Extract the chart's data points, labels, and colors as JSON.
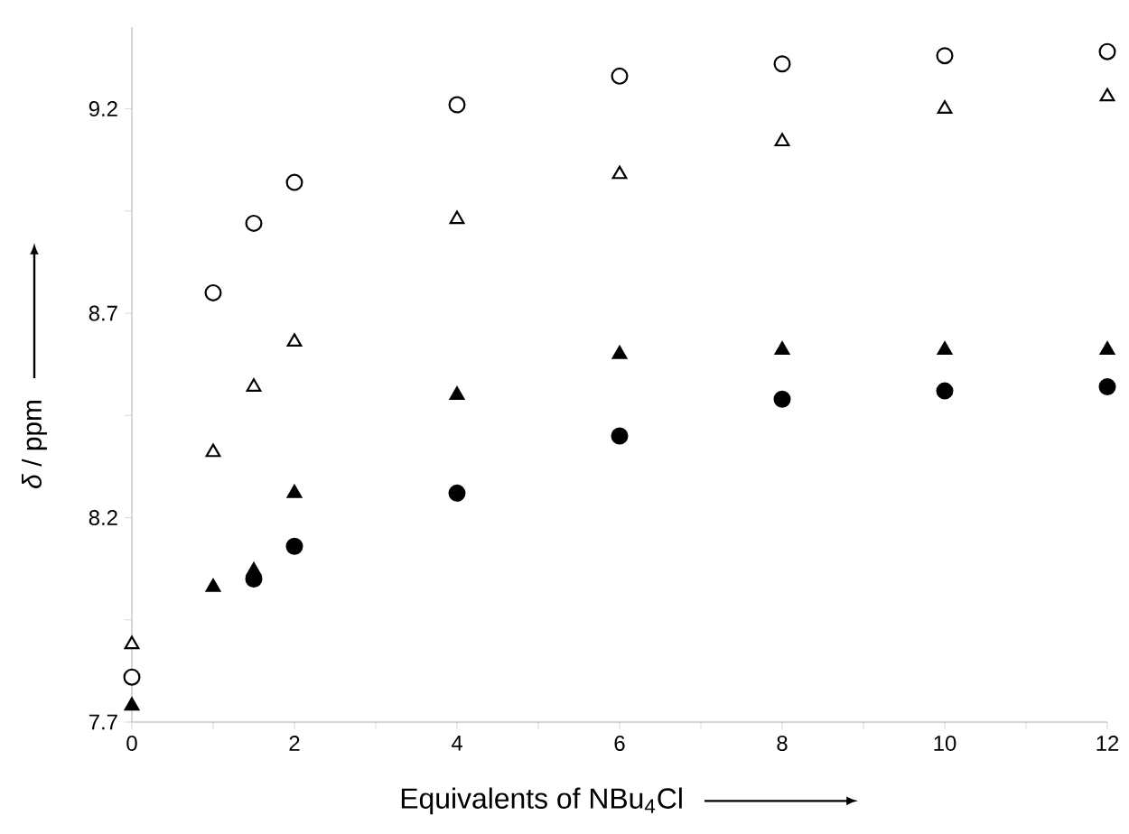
{
  "chart_data": {
    "type": "scatter",
    "xlabel": "Equivalents of NBu$_{4}$Cl",
    "ylabel": "*δ* / ppm",
    "x": [
      0,
      1,
      1.5,
      2,
      4,
      6,
      8,
      10,
      12
    ],
    "xlim": [
      0,
      12
    ],
    "ylim": [
      7.7,
      9.4
    ],
    "xticks": [
      0,
      {
        "value": 1,
        "label": null
      },
      2,
      {
        "value": 3,
        "label": null
      },
      4,
      {
        "value": 5,
        "label": null
      },
      6,
      {
        "value": 7,
        "label": null
      },
      8,
      {
        "value": 9,
        "label": null
      },
      10,
      {
        "value": 11,
        "label": null
      },
      12
    ],
    "yticks": [
      7.7,
      {
        "value": 7.95,
        "label": null
      },
      8.2,
      {
        "value": 8.45,
        "label": null
      },
      8.7,
      {
        "value": 8.95,
        "label": null
      },
      9.2
    ],
    "series": [
      {
        "color": "#ffffff",
        "marker": "circle",
        "values": [
          7.81,
          8.75,
          8.92,
          9.02,
          9.21,
          9.28,
          9.31,
          9.33,
          9.34
        ]
      },
      {
        "color": "#ffffff",
        "marker": "triangle",
        "values": [
          7.89,
          8.36,
          8.52,
          8.63,
          8.93,
          9.04,
          9.12,
          9.2,
          9.23
        ]
      },
      {
        "color": "#000000",
        "marker": "triangle",
        "values": [
          7.74,
          8.03,
          8.07,
          8.26,
          8.5,
          8.6,
          8.61,
          8.61,
          8.61
        ]
      },
      {
        "color": "#000000",
        "marker": "circle",
        "values": [
          null,
          null,
          8.05,
          8.13,
          8.26,
          8.4,
          8.49,
          8.51,
          8.52
        ]
      }
    ]
  }
}
